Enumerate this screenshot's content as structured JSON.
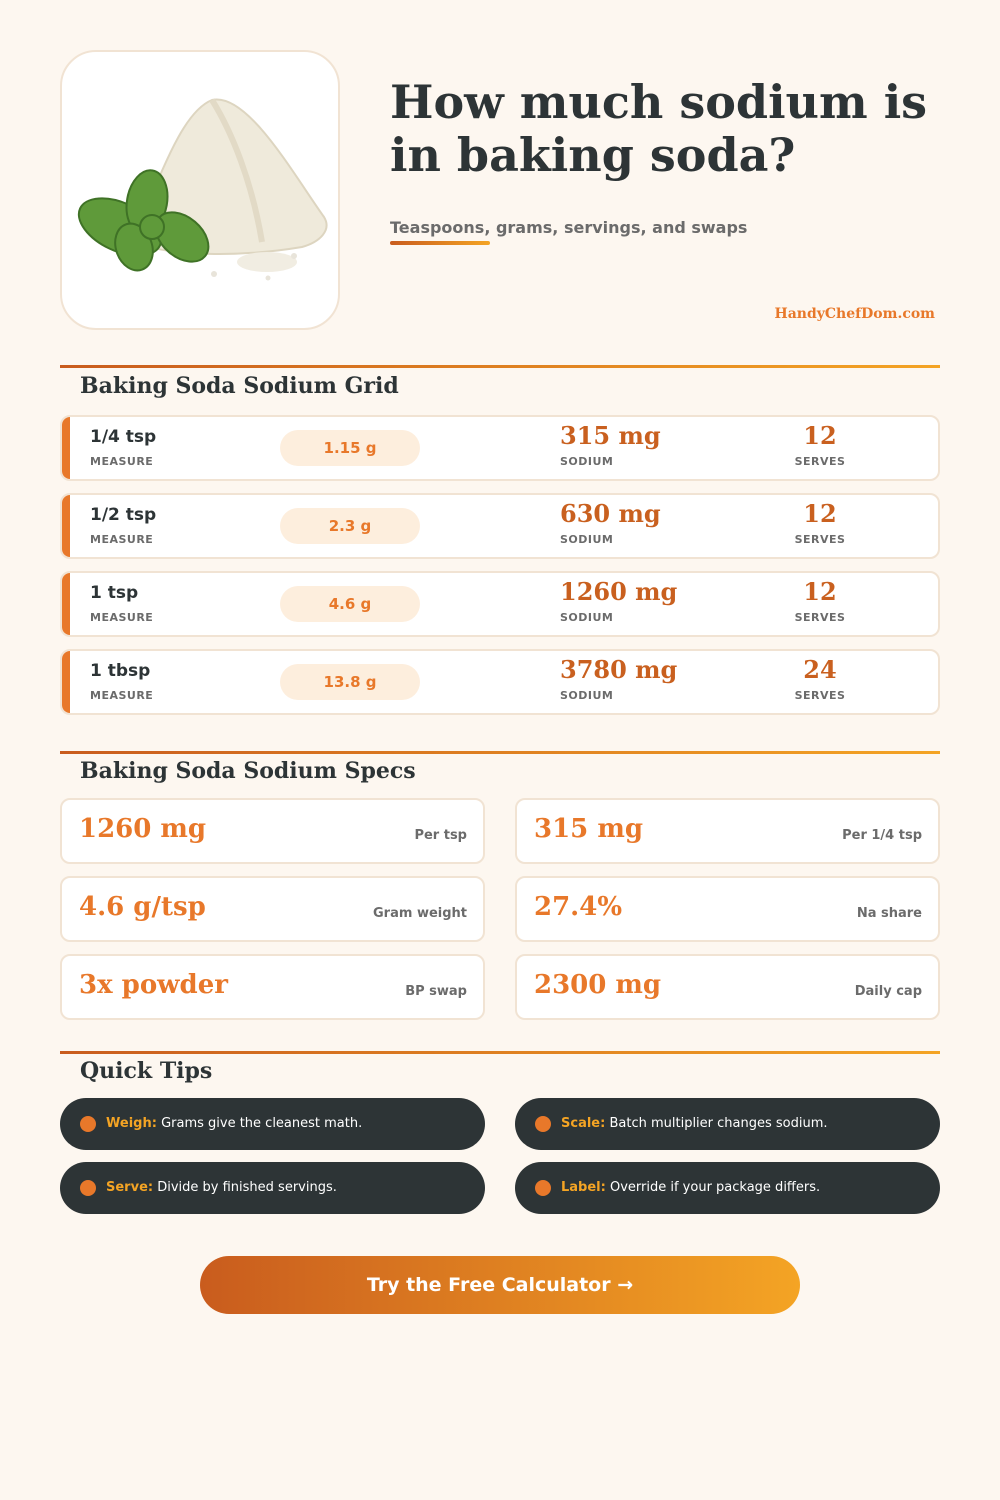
{
  "header": {
    "title": "How much sodium is in baking soda?",
    "subtitle": "Teaspoons, grams, servings, and swaps",
    "brand": "HandyChefDom.com"
  },
  "grid": {
    "heading": "Baking Soda Sodium Grid",
    "labels": {
      "measure": "MEASURE",
      "sodium": "SODIUM",
      "serves": "SERVES"
    },
    "rows": [
      {
        "measure": "1/4 tsp",
        "grams": "1.15 g",
        "sodium": "315 mg",
        "serves": "12"
      },
      {
        "measure": "1/2 tsp",
        "grams": "2.3 g",
        "sodium": "630 mg",
        "serves": "12"
      },
      {
        "measure": "1 tsp",
        "grams": "4.6 g",
        "sodium": "1260 mg",
        "serves": "12"
      },
      {
        "measure": "1 tbsp",
        "grams": "13.8 g",
        "sodium": "3780 mg",
        "serves": "24"
      }
    ]
  },
  "specs": {
    "heading": "Baking Soda Sodium Specs",
    "items": [
      {
        "value": "1260 mg",
        "label": "Per tsp"
      },
      {
        "value": "315 mg",
        "label": "Per 1/4 tsp"
      },
      {
        "value": "4.6 g/tsp",
        "label": "Gram weight"
      },
      {
        "value": "27.4%",
        "label": "Na share"
      },
      {
        "value": "3x powder",
        "label": "BP swap"
      },
      {
        "value": "2300 mg",
        "label": "Daily cap"
      }
    ]
  },
  "tips": {
    "heading": "Quick Tips",
    "items": [
      {
        "label": "Weigh:",
        "text": "Grams give the cleanest math."
      },
      {
        "label": "Scale:",
        "text": "Batch multiplier changes sodium."
      },
      {
        "label": "Serve:",
        "text": "Divide by finished servings."
      },
      {
        "label": "Label:",
        "text": "Override if your package differs."
      }
    ]
  },
  "cta": "Try the Free Calculator →"
}
